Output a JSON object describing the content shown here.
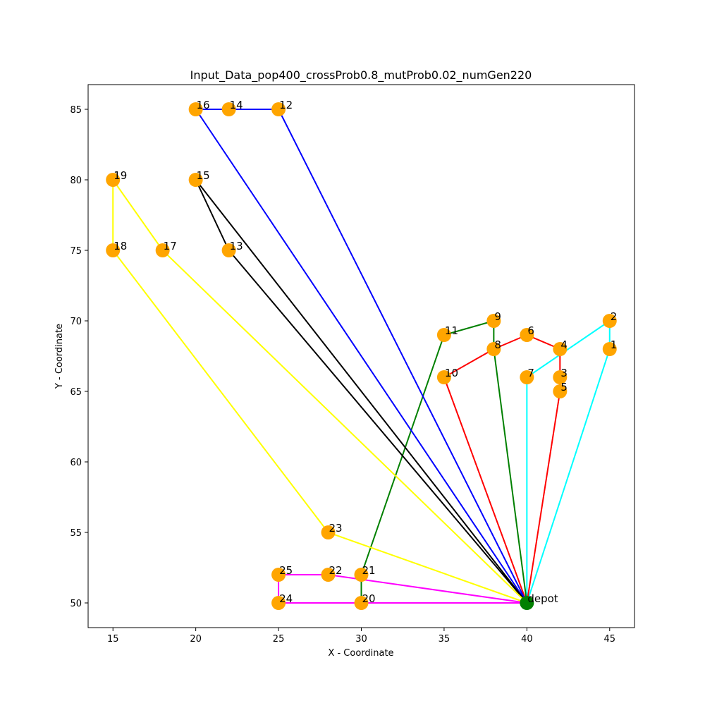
{
  "chart_data": {
    "type": "scatter",
    "title": "Input_Data_pop400_crossProb0.8_mutProb0.02_numGen220",
    "xlabel": "X - Coordinate",
    "ylabel": "Y - Coordinate",
    "xlim": [
      13.5,
      46.5
    ],
    "ylim": [
      48.25,
      86.75
    ],
    "xticks": [
      15,
      20,
      25,
      30,
      35,
      40,
      45
    ],
    "yticks": [
      50,
      55,
      60,
      65,
      70,
      75,
      80,
      85
    ],
    "grid": false,
    "depot": {
      "label": "depot",
      "x": 40,
      "y": 50,
      "color": "#008000"
    },
    "customer_color": "#FFA500",
    "nodes": [
      {
        "label": "1",
        "x": 45,
        "y": 68
      },
      {
        "label": "2",
        "x": 45,
        "y": 70
      },
      {
        "label": "3",
        "x": 42,
        "y": 66
      },
      {
        "label": "4",
        "x": 42,
        "y": 68
      },
      {
        "label": "5",
        "x": 42,
        "y": 65
      },
      {
        "label": "6",
        "x": 40,
        "y": 69
      },
      {
        "label": "7",
        "x": 40,
        "y": 66
      },
      {
        "label": "8",
        "x": 38,
        "y": 68
      },
      {
        "label": "9",
        "x": 38,
        "y": 70
      },
      {
        "label": "10",
        "x": 35,
        "y": 66
      },
      {
        "label": "11",
        "x": 35,
        "y": 69
      },
      {
        "label": "12",
        "x": 25,
        "y": 85
      },
      {
        "label": "13",
        "x": 22,
        "y": 75
      },
      {
        "label": "14",
        "x": 22,
        "y": 85
      },
      {
        "label": "15",
        "x": 20,
        "y": 80
      },
      {
        "label": "16",
        "x": 20,
        "y": 85
      },
      {
        "label": "17",
        "x": 18,
        "y": 75
      },
      {
        "label": "18",
        "x": 15,
        "y": 75
      },
      {
        "label": "19",
        "x": 15,
        "y": 80
      },
      {
        "label": "20",
        "x": 30,
        "y": 50
      },
      {
        "label": "21",
        "x": 30,
        "y": 52
      },
      {
        "label": "22",
        "x": 28,
        "y": 52
      },
      {
        "label": "23",
        "x": 28,
        "y": 55
      },
      {
        "label": "24",
        "x": 25,
        "y": 50
      },
      {
        "label": "25",
        "x": 25,
        "y": 52
      }
    ],
    "routes": [
      {
        "name": "route-cyan",
        "color": "#00FFFF",
        "stops": [
          "7",
          "2",
          "1"
        ]
      },
      {
        "name": "route-red",
        "color": "#FF0000",
        "stops": [
          "5",
          "3",
          "4",
          "6",
          "8",
          "10"
        ]
      },
      {
        "name": "route-green",
        "color": "#008000",
        "stops": [
          "20",
          "21",
          "11",
          "9",
          "8"
        ]
      },
      {
        "name": "route-blue",
        "color": "#0000FF",
        "stops": [
          "16",
          "14",
          "12"
        ]
      },
      {
        "name": "route-black",
        "color": "#000000",
        "stops": [
          "13",
          "15"
        ]
      },
      {
        "name": "route-yellow",
        "color": "#FFFF00",
        "stops": [
          "17",
          "19",
          "18",
          "23"
        ]
      },
      {
        "name": "route-magenta",
        "color": "#FF00FF",
        "stops": [
          "22",
          "25",
          "24",
          "20"
        ]
      }
    ]
  }
}
